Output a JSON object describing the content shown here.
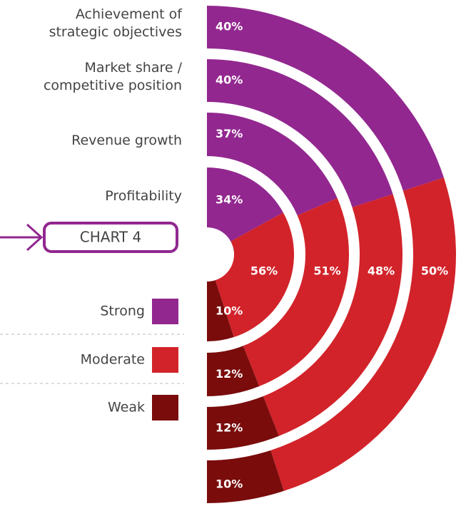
{
  "chart_data": {
    "type": "radial_stacked",
    "title": "CHART 4",
    "categories": [
      "Achievement of\nstrategic objectives",
      "Market share /\ncompetitive position",
      "Revenue growth",
      "Profitability"
    ],
    "series": [
      {
        "name": "Strong",
        "color": "#92278f",
        "values": [
          40,
          40,
          37,
          34
        ],
        "value_labels": [
          "40%",
          "40%",
          "37%",
          "34%"
        ]
      },
      {
        "name": "Moderate",
        "color": "#d2232a",
        "values": [
          50,
          48,
          51,
          56
        ],
        "value_labels": [
          "50%",
          "48%",
          "51%",
          "56%"
        ]
      },
      {
        "name": "Weak",
        "color": "#7a0c0c",
        "values": [
          10,
          12,
          12,
          10
        ],
        "value_labels": [
          "10%",
          "12%",
          "12%",
          "10%"
        ]
      }
    ],
    "legend": "left"
  }
}
